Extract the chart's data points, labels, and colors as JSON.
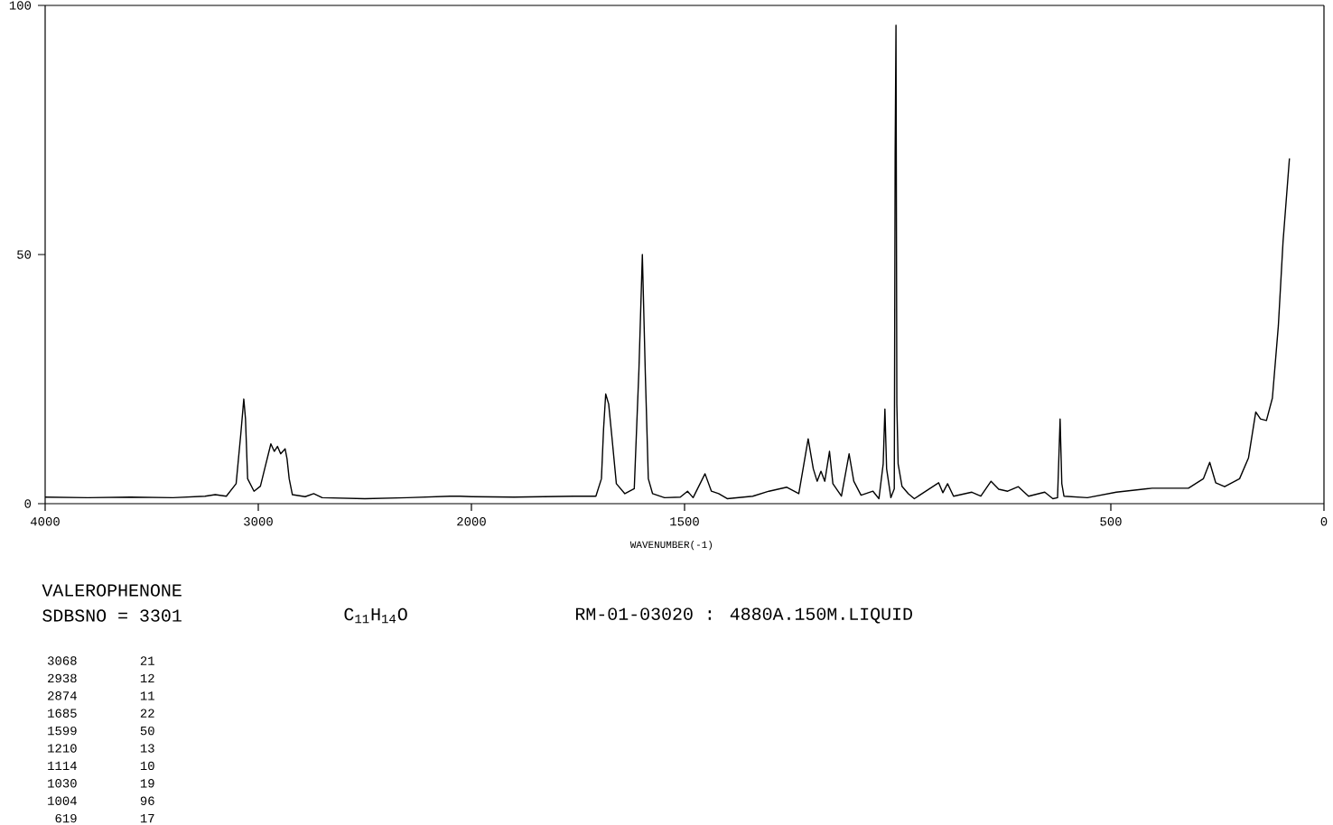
{
  "chart_data": [
    {
      "type": "line",
      "color": "#000000",
      "xlim": [
        4000,
        2000
      ],
      "ylim": [
        0,
        100
      ],
      "xticks": [
        4000,
        3000,
        2000
      ],
      "yticks": [
        0,
        50,
        100
      ],
      "x": [
        4000,
        3800,
        3600,
        3400,
        3250,
        3202,
        3150,
        3104,
        3082,
        3068,
        3060,
        3050,
        3020,
        2990,
        2970,
        2941,
        2925,
        2910,
        2895,
        2874,
        2865,
        2855,
        2840,
        2780,
        2740,
        2700,
        2500,
        2300,
        2100,
        2053,
        2000
      ],
      "values": [
        1.3,
        1.2,
        1.3,
        1.2,
        1.5,
        1.8,
        1.5,
        4,
        14,
        21,
        17,
        5,
        2.5,
        3.5,
        7,
        12,
        10.5,
        11.5,
        10,
        11,
        9,
        5,
        1.8,
        1.4,
        2,
        1.2,
        1,
        1.2,
        1.5,
        1.5,
        1.4
      ],
      "annotations": [
        "VALEROPHENONE",
        "SDBSNO = 3301",
        "C$_{11}$H$_{14}$O",
        "RM-01-03020 : 4880A.150M.LIQUID",
        "3068",
        "21",
        "2938",
        "12",
        "2874",
        "11",
        "1685",
        "22",
        "1599",
        "50",
        "1210",
        "13",
        "1114",
        "10",
        "1030",
        "19",
        "1004",
        "96",
        "619",
        "17"
      ]
    },
    {
      "type": "line",
      "color": "#000000",
      "xlabel": "WAVENUMBER(-1)",
      "xlim": [
        2000,
        0
      ],
      "ylim": [
        0,
        100
      ],
      "tick_labels": "x",
      "xticks": [
        1500,
        500,
        0
      ],
      "x": [
        2000,
        1900,
        1760,
        1708,
        1695,
        1690,
        1685,
        1678,
        1670,
        1660,
        1640,
        1618,
        1607,
        1599,
        1592,
        1585,
        1575,
        1547,
        1510,
        1493,
        1480,
        1452,
        1437,
        1420,
        1400,
        1340,
        1302,
        1260,
        1232,
        1220,
        1210,
        1198,
        1189,
        1180,
        1171,
        1160,
        1152,
        1132,
        1114,
        1103,
        1086,
        1058,
        1044,
        1034,
        1030,
        1026,
        1016,
        1008,
        1006,
        1004,
        1002,
        999,
        990,
        975,
        961,
        904,
        894,
        883,
        869,
        826,
        805,
        781,
        763,
        742,
        717,
        693,
        655,
        636,
        625,
        622,
        619,
        615,
        610,
        555,
        487,
        403,
        318,
        283,
        268,
        254,
        233,
        198,
        177,
        160,
        149,
        135,
        121,
        107,
        96,
        81
      ],
      "values": [
        1.4,
        1.3,
        1.5,
        1.5,
        5,
        15,
        22,
        20,
        13,
        4,
        2,
        3,
        27,
        50,
        26,
        5,
        2,
        1.2,
        1.3,
        2.5,
        1.2,
        6,
        2.5,
        2,
        1,
        1.5,
        2.5,
        3.3,
        2,
        8,
        13,
        7,
        4.5,
        6.5,
        4.5,
        10.5,
        4,
        1.5,
        10,
        4.5,
        1.7,
        2.5,
        1,
        8,
        19,
        7,
        1.2,
        3,
        70,
        96,
        20,
        8,
        3.5,
        2,
        1,
        4.2,
        2.2,
        4,
        1.5,
        2.3,
        1.5,
        4.5,
        2.9,
        2.5,
        3.4,
        1.5,
        2.3,
        1,
        1.2,
        9,
        17,
        4,
        1.5,
        1.2,
        2.3,
        3.1,
        3.1,
        5,
        8.3,
        4.2,
        3.4,
        5,
        9.2,
        18.4,
        17,
        16.7,
        21.2,
        35.7,
        52.6,
        69.3
      ]
    }
  ]
}
